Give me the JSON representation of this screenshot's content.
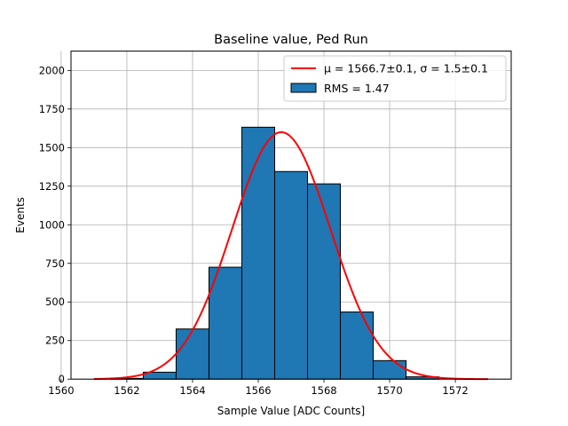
{
  "chart_data": {
    "type": "bar",
    "title": "Baseline value, Ped Run",
    "xlabel": "Sample Value [ADC Counts]",
    "ylabel": "Events",
    "xlim": [
      1560.3,
      1573.7
    ],
    "ylim": [
      0,
      2125
    ],
    "xticks": [
      1560,
      1562,
      1564,
      1566,
      1568,
      1570,
      1572
    ],
    "yticks": [
      0,
      250,
      500,
      750,
      1000,
      1250,
      1500,
      1750,
      2000
    ],
    "grid": true,
    "legend_position": "top-right",
    "bins": [
      {
        "x0": 1560.5,
        "x1": 1561.5,
        "count": 0
      },
      {
        "x0": 1561.5,
        "x1": 1562.5,
        "count": 5
      },
      {
        "x0": 1562.5,
        "x1": 1563.5,
        "count": 45
      },
      {
        "x0": 1563.5,
        "x1": 1564.5,
        "count": 325
      },
      {
        "x0": 1564.5,
        "x1": 1565.5,
        "count": 725
      },
      {
        "x0": 1565.5,
        "x1": 1566.5,
        "count": 1632
      },
      {
        "x0": 1566.5,
        "x1": 1567.5,
        "count": 1345
      },
      {
        "x0": 1567.5,
        "x1": 1568.5,
        "count": 1265
      },
      {
        "x0": 1568.5,
        "x1": 1569.5,
        "count": 435
      },
      {
        "x0": 1569.5,
        "x1": 1570.5,
        "count": 120
      },
      {
        "x0": 1570.5,
        "x1": 1571.5,
        "count": 15
      },
      {
        "x0": 1571.5,
        "x1": 1572.5,
        "count": 0
      }
    ],
    "fit": {
      "type": "gaussian",
      "mu": 1566.7,
      "sigma": 1.5,
      "amplitude": 1600,
      "x_range": [
        1561,
        1573
      ]
    },
    "legend": [
      {
        "label": "μ = 1566.7±0.1, σ = 1.5±0.1",
        "kind": "line",
        "color": "#ff0000"
      },
      {
        "label": "RMS = 1.47",
        "kind": "patch",
        "color": "#1f77b4"
      }
    ],
    "colors": {
      "bar_fill": "#1f77b4",
      "bar_edge": "#000000",
      "fit_line": "#ff0000",
      "grid": "#b0b0b0"
    }
  }
}
